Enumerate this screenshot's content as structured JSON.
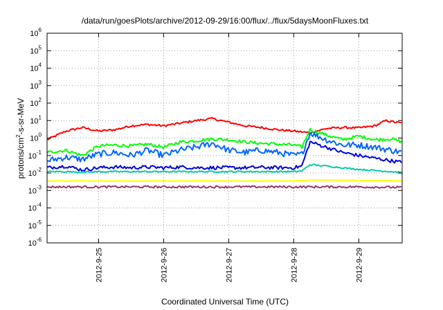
{
  "chart_data": {
    "type": "line",
    "title": "/data/run/goesPlots/archive/2012-09-29/16:00/flux/../flux/5daysMoonFluxes.txt",
    "xlabel": "Coordinated Universal Time (UTC)",
    "ylabel_prefix": "protons/cm",
    "ylabel_sup": "2",
    "ylabel_suffix": "-s-sr-MeV",
    "yscale": "log",
    "ylim": [
      1e-06,
      1000000.0
    ],
    "yticks": [
      {
        "base": "10",
        "exp": "-6",
        "value": 1e-06
      },
      {
        "base": "10",
        "exp": "-5",
        "value": 1e-05
      },
      {
        "base": "10",
        "exp": "-4",
        "value": 0.0001
      },
      {
        "base": "10",
        "exp": "-3",
        "value": 0.001
      },
      {
        "base": "10",
        "exp": "-2",
        "value": 0.01
      },
      {
        "base": "10",
        "exp": "-1",
        "value": 0.1
      },
      {
        "base": "10",
        "exp": "0",
        "value": 1.0
      },
      {
        "base": "10",
        "exp": "1",
        "value": 10.0
      },
      {
        "base": "10",
        "exp": "2",
        "value": 100.0
      },
      {
        "base": "10",
        "exp": "3",
        "value": 1000.0
      },
      {
        "base": "10",
        "exp": "4",
        "value": 10000.0
      },
      {
        "base": "10",
        "exp": "5",
        "value": 100000.0
      },
      {
        "base": "10",
        "exp": "6",
        "value": 1000000.0
      }
    ],
    "xlim": [
      "2012-09-24 05:00",
      "2012-09-29 16:00"
    ],
    "xticks": [
      "2012-9-25",
      "2012-9-26",
      "2012-9-27",
      "2012-9-28",
      "2012-9-29"
    ],
    "grid": true,
    "series": [
      {
        "color": "#ff0000",
        "x": [
          "2012-09-24 05:00",
          "2012-09-24 12:00",
          "2012-09-24 18:00",
          "2012-09-25 00:00",
          "2012-09-25 06:00",
          "2012-09-25 12:00",
          "2012-09-25 18:00",
          "2012-09-26 00:00",
          "2012-09-26 06:00",
          "2012-09-26 12:00",
          "2012-09-26 18:00",
          "2012-09-27 00:00",
          "2012-09-27 06:00",
          "2012-09-27 12:00",
          "2012-09-27 18:00",
          "2012-09-28 00:00",
          "2012-09-28 06:00",
          "2012-09-28 12:00",
          "2012-09-28 18:00",
          "2012-09-29 00:00",
          "2012-09-29 06:00",
          "2012-09-29 10:00",
          "2012-09-29 16:00"
        ],
        "y": [
          0.8,
          2.5,
          4.0,
          2.5,
          3.0,
          5.0,
          6.0,
          5.0,
          7.0,
          10.0,
          13.0,
          8.0,
          5.0,
          4.0,
          3.0,
          2.5,
          2.0,
          3.5,
          4.0,
          3.8,
          5.0,
          10.0,
          7.0
        ]
      },
      {
        "color": "#00ff00",
        "x": [
          "2012-09-24 05:00",
          "2012-09-24 12:00",
          "2012-09-24 18:00",
          "2012-09-25 00:00",
          "2012-09-25 06:00",
          "2012-09-25 12:00",
          "2012-09-25 18:00",
          "2012-09-26 00:00",
          "2012-09-26 06:00",
          "2012-09-26 12:00",
          "2012-09-26 18:00",
          "2012-09-27 00:00",
          "2012-09-27 06:00",
          "2012-09-27 12:00",
          "2012-09-27 18:00",
          "2012-09-28 00:00",
          "2012-09-28 03:00",
          "2012-09-28 06:00",
          "2012-09-28 12:00",
          "2012-09-28 18:00",
          "2012-09-29 00:00",
          "2012-09-29 06:00",
          "2012-09-29 12:00",
          "2012-09-29 16:00"
        ],
        "y": [
          0.15,
          0.2,
          0.1,
          0.35,
          0.4,
          0.35,
          0.45,
          0.3,
          0.6,
          0.7,
          0.9,
          0.8,
          0.6,
          0.5,
          0.45,
          0.4,
          0.3,
          3.0,
          1.5,
          0.8,
          1.3,
          0.8,
          0.9,
          0.6
        ]
      },
      {
        "color": "#0066ff",
        "x": [
          "2012-09-24 05:00",
          "2012-09-24 12:00",
          "2012-09-24 18:00",
          "2012-09-25 00:00",
          "2012-09-25 06:00",
          "2012-09-25 12:00",
          "2012-09-25 18:00",
          "2012-09-26 00:00",
          "2012-09-26 06:00",
          "2012-09-26 12:00",
          "2012-09-26 18:00",
          "2012-09-27 00:00",
          "2012-09-27 06:00",
          "2012-09-27 12:00",
          "2012-09-27 18:00",
          "2012-09-28 00:00",
          "2012-09-28 03:00",
          "2012-09-28 06:00",
          "2012-09-28 12:00",
          "2012-09-28 18:00",
          "2012-09-29 00:00",
          "2012-09-29 06:00",
          "2012-09-29 12:00",
          "2012-09-29 16:00"
        ],
        "y": [
          0.05,
          0.08,
          0.06,
          0.12,
          0.15,
          0.1,
          0.2,
          0.1,
          0.2,
          0.3,
          0.5,
          0.2,
          0.15,
          0.2,
          0.15,
          0.1,
          0.12,
          2.0,
          0.8,
          0.4,
          0.4,
          0.3,
          0.2,
          0.15
        ]
      },
      {
        "color": "#0000dd",
        "x": [
          "2012-09-24 05:00",
          "2012-09-24 12:00",
          "2012-09-24 18:00",
          "2012-09-25 00:00",
          "2012-09-25 06:00",
          "2012-09-25 12:00",
          "2012-09-25 18:00",
          "2012-09-26 00:00",
          "2012-09-26 06:00",
          "2012-09-26 12:00",
          "2012-09-26 18:00",
          "2012-09-27 00:00",
          "2012-09-27 06:00",
          "2012-09-27 12:00",
          "2012-09-27 18:00",
          "2012-09-28 00:00",
          "2012-09-28 03:00",
          "2012-09-28 06:00",
          "2012-09-28 12:00",
          "2012-09-28 18:00",
          "2012-09-29 00:00",
          "2012-09-29 06:00",
          "2012-09-29 12:00",
          "2012-09-29 16:00"
        ],
        "y": [
          0.02,
          0.025,
          0.015,
          0.02,
          0.022,
          0.02,
          0.022,
          0.02,
          0.022,
          0.02,
          0.02,
          0.02,
          0.02,
          0.021,
          0.02,
          0.02,
          0.025,
          0.6,
          0.3,
          0.15,
          0.1,
          0.07,
          0.05,
          0.04
        ]
      },
      {
        "color": "#00ccaa",
        "x": [
          "2012-09-24 05:00",
          "2012-09-24 12:00",
          "2012-09-24 18:00",
          "2012-09-25 00:00",
          "2012-09-25 06:00",
          "2012-09-25 12:00",
          "2012-09-25 18:00",
          "2012-09-26 00:00",
          "2012-09-26 06:00",
          "2012-09-26 12:00",
          "2012-09-26 18:00",
          "2012-09-27 00:00",
          "2012-09-27 06:00",
          "2012-09-27 12:00",
          "2012-09-27 18:00",
          "2012-09-28 00:00",
          "2012-09-28 03:00",
          "2012-09-28 06:00",
          "2012-09-28 12:00",
          "2012-09-28 18:00",
          "2012-09-29 00:00",
          "2012-09-29 06:00",
          "2012-09-29 12:00",
          "2012-09-29 16:00"
        ],
        "y": [
          0.012,
          0.012,
          0.011,
          0.012,
          0.012,
          0.012,
          0.012,
          0.012,
          0.012,
          0.012,
          0.012,
          0.012,
          0.012,
          0.012,
          0.012,
          0.012,
          0.013,
          0.03,
          0.025,
          0.02,
          0.016,
          0.014,
          0.012,
          0.011
        ]
      },
      {
        "color": "#ffff00",
        "x": [
          "2012-09-24 05:00",
          "2012-09-25 00:00",
          "2012-09-26 00:00",
          "2012-09-27 00:00",
          "2012-09-28 00:00",
          "2012-09-28 06:00",
          "2012-09-29 00:00",
          "2012-09-29 16:00"
        ],
        "y": [
          0.0035,
          0.0035,
          0.0035,
          0.0035,
          0.0035,
          0.004,
          0.0038,
          0.0036
        ]
      },
      {
        "color": "#993366",
        "x": [
          "2012-09-24 05:00",
          "2012-09-25 00:00",
          "2012-09-26 00:00",
          "2012-09-27 00:00",
          "2012-09-28 00:00",
          "2012-09-29 00:00",
          "2012-09-29 16:00"
        ],
        "y": [
          0.0016,
          0.0016,
          0.0016,
          0.0016,
          0.0016,
          0.0016,
          0.0015
        ]
      }
    ]
  }
}
